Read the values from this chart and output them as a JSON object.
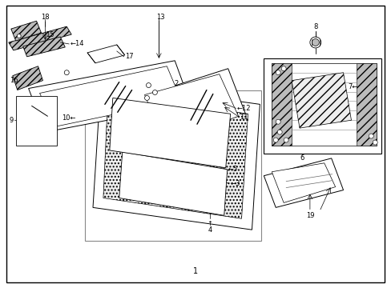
{
  "bg_color": "#ffffff",
  "lc": "#000000",
  "fig_width": 4.89,
  "fig_height": 3.6,
  "dpi": 100,
  "gray_fill": "#d8d8d8",
  "light_gray": "#eeeeee",
  "mid_gray": "#bbbbbb"
}
